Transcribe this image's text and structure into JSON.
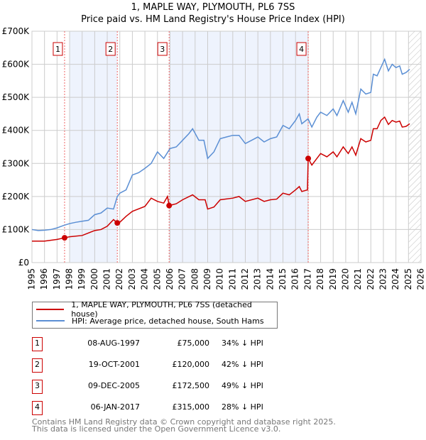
{
  "chart_data": {
    "type": "line",
    "title": "1, MAPLE WAY, PLYMOUTH, PL6 7SS",
    "subtitle": "Price paid vs. HM Land Registry's House Price Index (HPI)",
    "xlim": [
      1995,
      2026
    ],
    "ylim": [
      0,
      700000
    ],
    "x_ticks": [
      "1995",
      "1996",
      "1997",
      "1998",
      "1999",
      "2000",
      "2001",
      "2002",
      "2003",
      "2004",
      "2005",
      "2006",
      "2007",
      "2008",
      "2009",
      "2010",
      "2011",
      "2012",
      "2013",
      "2014",
      "2015",
      "2016",
      "2017",
      "2018",
      "2019",
      "2020",
      "2021",
      "2022",
      "2023",
      "2024",
      "2025",
      "2026"
    ],
    "y_ticks": [
      {
        "v": 0,
        "label": "£0"
      },
      {
        "v": 100000,
        "label": "£100K"
      },
      {
        "v": 200000,
        "label": "£200K"
      },
      {
        "v": 300000,
        "label": "£300K"
      },
      {
        "v": 400000,
        "label": "£400K"
      },
      {
        "v": 500000,
        "label": "£500K"
      },
      {
        "v": 600000,
        "label": "£600K"
      },
      {
        "v": 700000,
        "label": "£700K"
      }
    ],
    "grid": true,
    "shaded_ranges": [
      [
        1998.0,
        2001.8
      ],
      [
        2005.93,
        2017.01
      ]
    ],
    "hatched_from": 2025.0,
    "series": [
      {
        "name": "1, MAPLE WAY, PLYMOUTH, PL6 7SS (detached house)",
        "color": "#cc0000",
        "x": [
          1995,
          1996,
          1997,
          1997.6,
          1998,
          1999,
          2000,
          2000.5,
          2001,
          2001.5,
          2001.8,
          2002,
          2002.5,
          2003,
          2004,
          2004.5,
          2005,
          2005.5,
          2005.8,
          2005.93,
          2006.5,
          2007,
          2007.8,
          2008.3,
          2008.8,
          2009,
          2009.5,
          2010,
          2011,
          2011.5,
          2012,
          2013,
          2013.5,
          2014,
          2014.5,
          2015,
          2015.5,
          2016,
          2016.3,
          2016.5,
          2016.95,
          2017.01,
          2017.3,
          2017.7,
          2018,
          2018.5,
          2019,
          2019.3,
          2019.8,
          2020.2,
          2020.5,
          2020.8,
          2021.2,
          2021.6,
          2022,
          2022.2,
          2022.5,
          2022.8,
          2023.1,
          2023.4,
          2023.7,
          2024,
          2024.3,
          2024.5,
          2024.8,
          2025.1
        ],
        "y": [
          65000,
          65000,
          70000,
          75000,
          78000,
          82000,
          97000,
          100000,
          110000,
          130000,
          120000,
          122000,
          140000,
          155000,
          170000,
          195000,
          185000,
          180000,
          200000,
          172500,
          178000,
          190000,
          205000,
          190000,
          190000,
          162000,
          168000,
          190000,
          195000,
          200000,
          185000,
          195000,
          185000,
          190000,
          192000,
          210000,
          205000,
          220000,
          230000,
          215000,
          220000,
          315000,
          295000,
          315000,
          330000,
          320000,
          335000,
          320000,
          350000,
          330000,
          350000,
          325000,
          375000,
          365000,
          370000,
          405000,
          405000,
          430000,
          440000,
          418000,
          430000,
          425000,
          428000,
          410000,
          412000,
          420000
        ]
      },
      {
        "name": "HPI: Average price, detached house, South Hams",
        "color": "#5b8fd4",
        "x": [
          1995,
          1995.5,
          1996,
          1996.5,
          1997,
          1997.5,
          1998,
          1998.5,
          1999,
          1999.5,
          2000,
          2000.5,
          2001,
          2001.5,
          2001.8,
          2002,
          2002.5,
          2003,
          2003.5,
          2004,
          2004.5,
          2005,
          2005.5,
          2006,
          2006.5,
          2007,
          2007.5,
          2007.8,
          2008.3,
          2008.7,
          2009,
          2009.5,
          2010,
          2010.5,
          2011,
          2011.5,
          2012,
          2012.5,
          2013,
          2013.5,
          2014,
          2014.5,
          2015,
          2015.5,
          2016,
          2016.3,
          2016.5,
          2017,
          2017.3,
          2017.7,
          2018,
          2018.5,
          2019,
          2019.3,
          2019.8,
          2020.2,
          2020.5,
          2020.8,
          2021.2,
          2021.6,
          2022,
          2022.2,
          2022.5,
          2022.8,
          2023.1,
          2023.4,
          2023.7,
          2024,
          2024.3,
          2024.5,
          2024.8,
          2025.1
        ],
        "y": [
          100000,
          97000,
          98000,
          100000,
          105000,
          112000,
          118000,
          122000,
          125000,
          128000,
          145000,
          150000,
          165000,
          162000,
          200000,
          210000,
          220000,
          265000,
          272000,
          285000,
          300000,
          335000,
          315000,
          345000,
          350000,
          370000,
          390000,
          405000,
          370000,
          370000,
          315000,
          335000,
          375000,
          380000,
          385000,
          385000,
          360000,
          370000,
          380000,
          365000,
          375000,
          380000,
          415000,
          405000,
          430000,
          450000,
          420000,
          435000,
          410000,
          440000,
          455000,
          445000,
          465000,
          445000,
          490000,
          455000,
          485000,
          450000,
          525000,
          510000,
          515000,
          570000,
          565000,
          590000,
          615000,
          580000,
          600000,
          590000,
          595000,
          570000,
          575000,
          585000
        ]
      }
    ],
    "sales": [
      {
        "n": "1",
        "x": 1997.6,
        "y": 75000,
        "date": "08-AUG-1997",
        "price": "£75,000",
        "hpi": "34% ↓ HPI"
      },
      {
        "n": "2",
        "x": 2001.8,
        "y": 120000,
        "date": "19-OCT-2001",
        "price": "£120,000",
        "hpi": "42% ↓ HPI"
      },
      {
        "n": "3",
        "x": 2005.93,
        "y": 172500,
        "date": "09-DEC-2005",
        "price": "£172,500",
        "hpi": "49% ↓ HPI"
      },
      {
        "n": "4",
        "x": 2017.01,
        "y": 315000,
        "date": "06-JAN-2017",
        "price": "£315,000",
        "hpi": "28% ↓ HPI"
      }
    ]
  },
  "footer": {
    "line1": "Contains HM Land Registry data © Crown copyright and database right 2025.",
    "line2": "This data is licensed under the Open Government Licence v3.0."
  }
}
